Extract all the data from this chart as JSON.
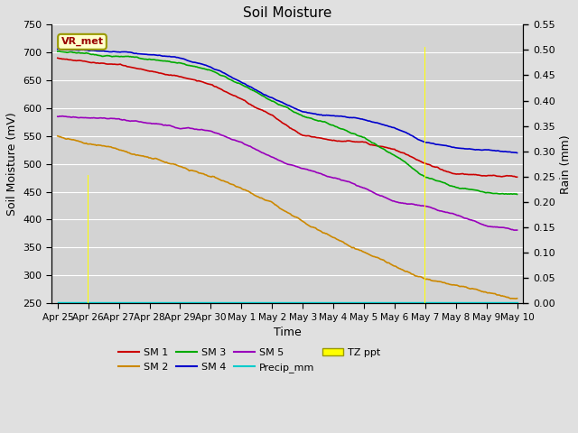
{
  "title": "Soil Moisture",
  "xlabel": "Time",
  "ylabel_left": "Soil Moisture (mV)",
  "ylabel_right": "Rain (mm)",
  "ylim_left": [
    250,
    750
  ],
  "ylim_right": [
    0.0,
    0.55
  ],
  "yticks_left": [
    250,
    300,
    350,
    400,
    450,
    500,
    550,
    600,
    650,
    700,
    750
  ],
  "yticks_right": [
    0.0,
    0.05,
    0.1,
    0.15,
    0.2,
    0.25,
    0.3,
    0.35,
    0.4,
    0.45,
    0.5,
    0.55
  ],
  "xtick_labels": [
    "Apr 25",
    "Apr 26",
    "Apr 27",
    "Apr 28",
    "Apr 29",
    "Apr 30",
    "May 1",
    "May 2",
    "May 3",
    "May 4",
    "May 5",
    "May 6",
    "May 7",
    "May 8",
    "May 9",
    "May 10"
  ],
  "background_color": "#e0e0e0",
  "plot_bg_color": "#d3d3d3",
  "grid_color": "#ffffff",
  "sm1_color": "#cc0000",
  "sm2_color": "#cc8800",
  "sm3_color": "#00aa00",
  "sm4_color": "#0000cc",
  "sm5_color": "#9900bb",
  "precip_color": "#00cccc",
  "tzppt_color": "#ffff00",
  "vr_met_bg": "#ffffcc",
  "vr_met_border": "#999900",
  "vr_met_text_color": "#990000",
  "n_points": 500
}
